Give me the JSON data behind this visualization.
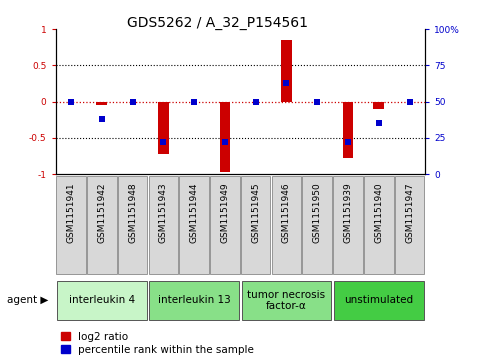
{
  "title": "GDS5262 / A_32_P154561",
  "samples": [
    "GSM1151941",
    "GSM1151942",
    "GSM1151948",
    "GSM1151943",
    "GSM1151944",
    "GSM1151949",
    "GSM1151945",
    "GSM1151946",
    "GSM1151950",
    "GSM1151939",
    "GSM1151940",
    "GSM1151947"
  ],
  "log2_ratio": [
    0.0,
    -0.05,
    0.0,
    -0.72,
    0.0,
    -0.97,
    0.0,
    0.85,
    0.0,
    -0.78,
    -0.1,
    0.0
  ],
  "percentile_rank": [
    50,
    38,
    50,
    22,
    50,
    22,
    50,
    63,
    50,
    22,
    35,
    50
  ],
  "agents": [
    {
      "label": "interleukin 4",
      "start": 0,
      "end": 3,
      "color": "#c8f5c8"
    },
    {
      "label": "interleukin 13",
      "start": 3,
      "end": 6,
      "color": "#88e088"
    },
    {
      "label": "tumor necrosis\nfactor-α",
      "start": 6,
      "end": 9,
      "color": "#88e088"
    },
    {
      "label": "unstimulated",
      "start": 9,
      "end": 12,
      "color": "#44cc44"
    }
  ],
  "bar_color": "#cc0000",
  "dot_color": "#0000cc",
  "sample_box_color": "#d8d8d8",
  "ylim": [
    -1,
    1
  ],
  "yticks_left": [
    -1,
    -0.5,
    0,
    0.5,
    1
  ],
  "yticks_left_labels": [
    "-1",
    "-0.5",
    "0",
    "0.5",
    "1"
  ],
  "yticks_right": [
    0,
    25,
    50,
    75,
    100
  ],
  "yticks_right_labels": [
    "0",
    "25",
    "50",
    "75",
    "100%"
  ],
  "bar_width": 0.35,
  "dot_size": 22,
  "title_fontsize": 10,
  "tick_fontsize": 6.5,
  "agent_fontsize": 7.5,
  "legend_fontsize": 7.5
}
